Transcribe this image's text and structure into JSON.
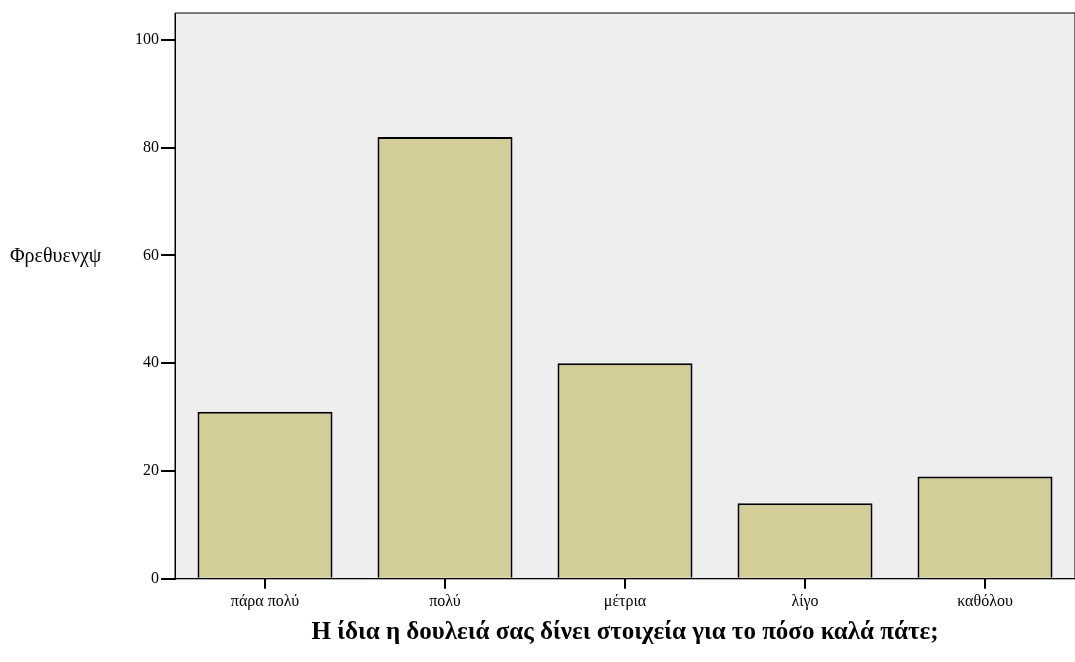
{
  "chart_data": {
    "type": "bar",
    "xlabel": "Η ίδια η δουλειά σας δίνει στοιχεία για το πόσο καλά πάτε;",
    "ylabel": "Φρεθυενχψ",
    "categories": [
      "πάρα πολύ",
      "πολύ",
      "μέτρια",
      "λίγο",
      "καθόλου"
    ],
    "values": [
      31,
      82,
      40,
      14,
      19
    ],
    "color": "#d3ce97",
    "ylim": [
      0,
      105
    ],
    "yticks": [
      0,
      20,
      40,
      60,
      80,
      100
    ],
    "grid": false,
    "legend": false
  }
}
